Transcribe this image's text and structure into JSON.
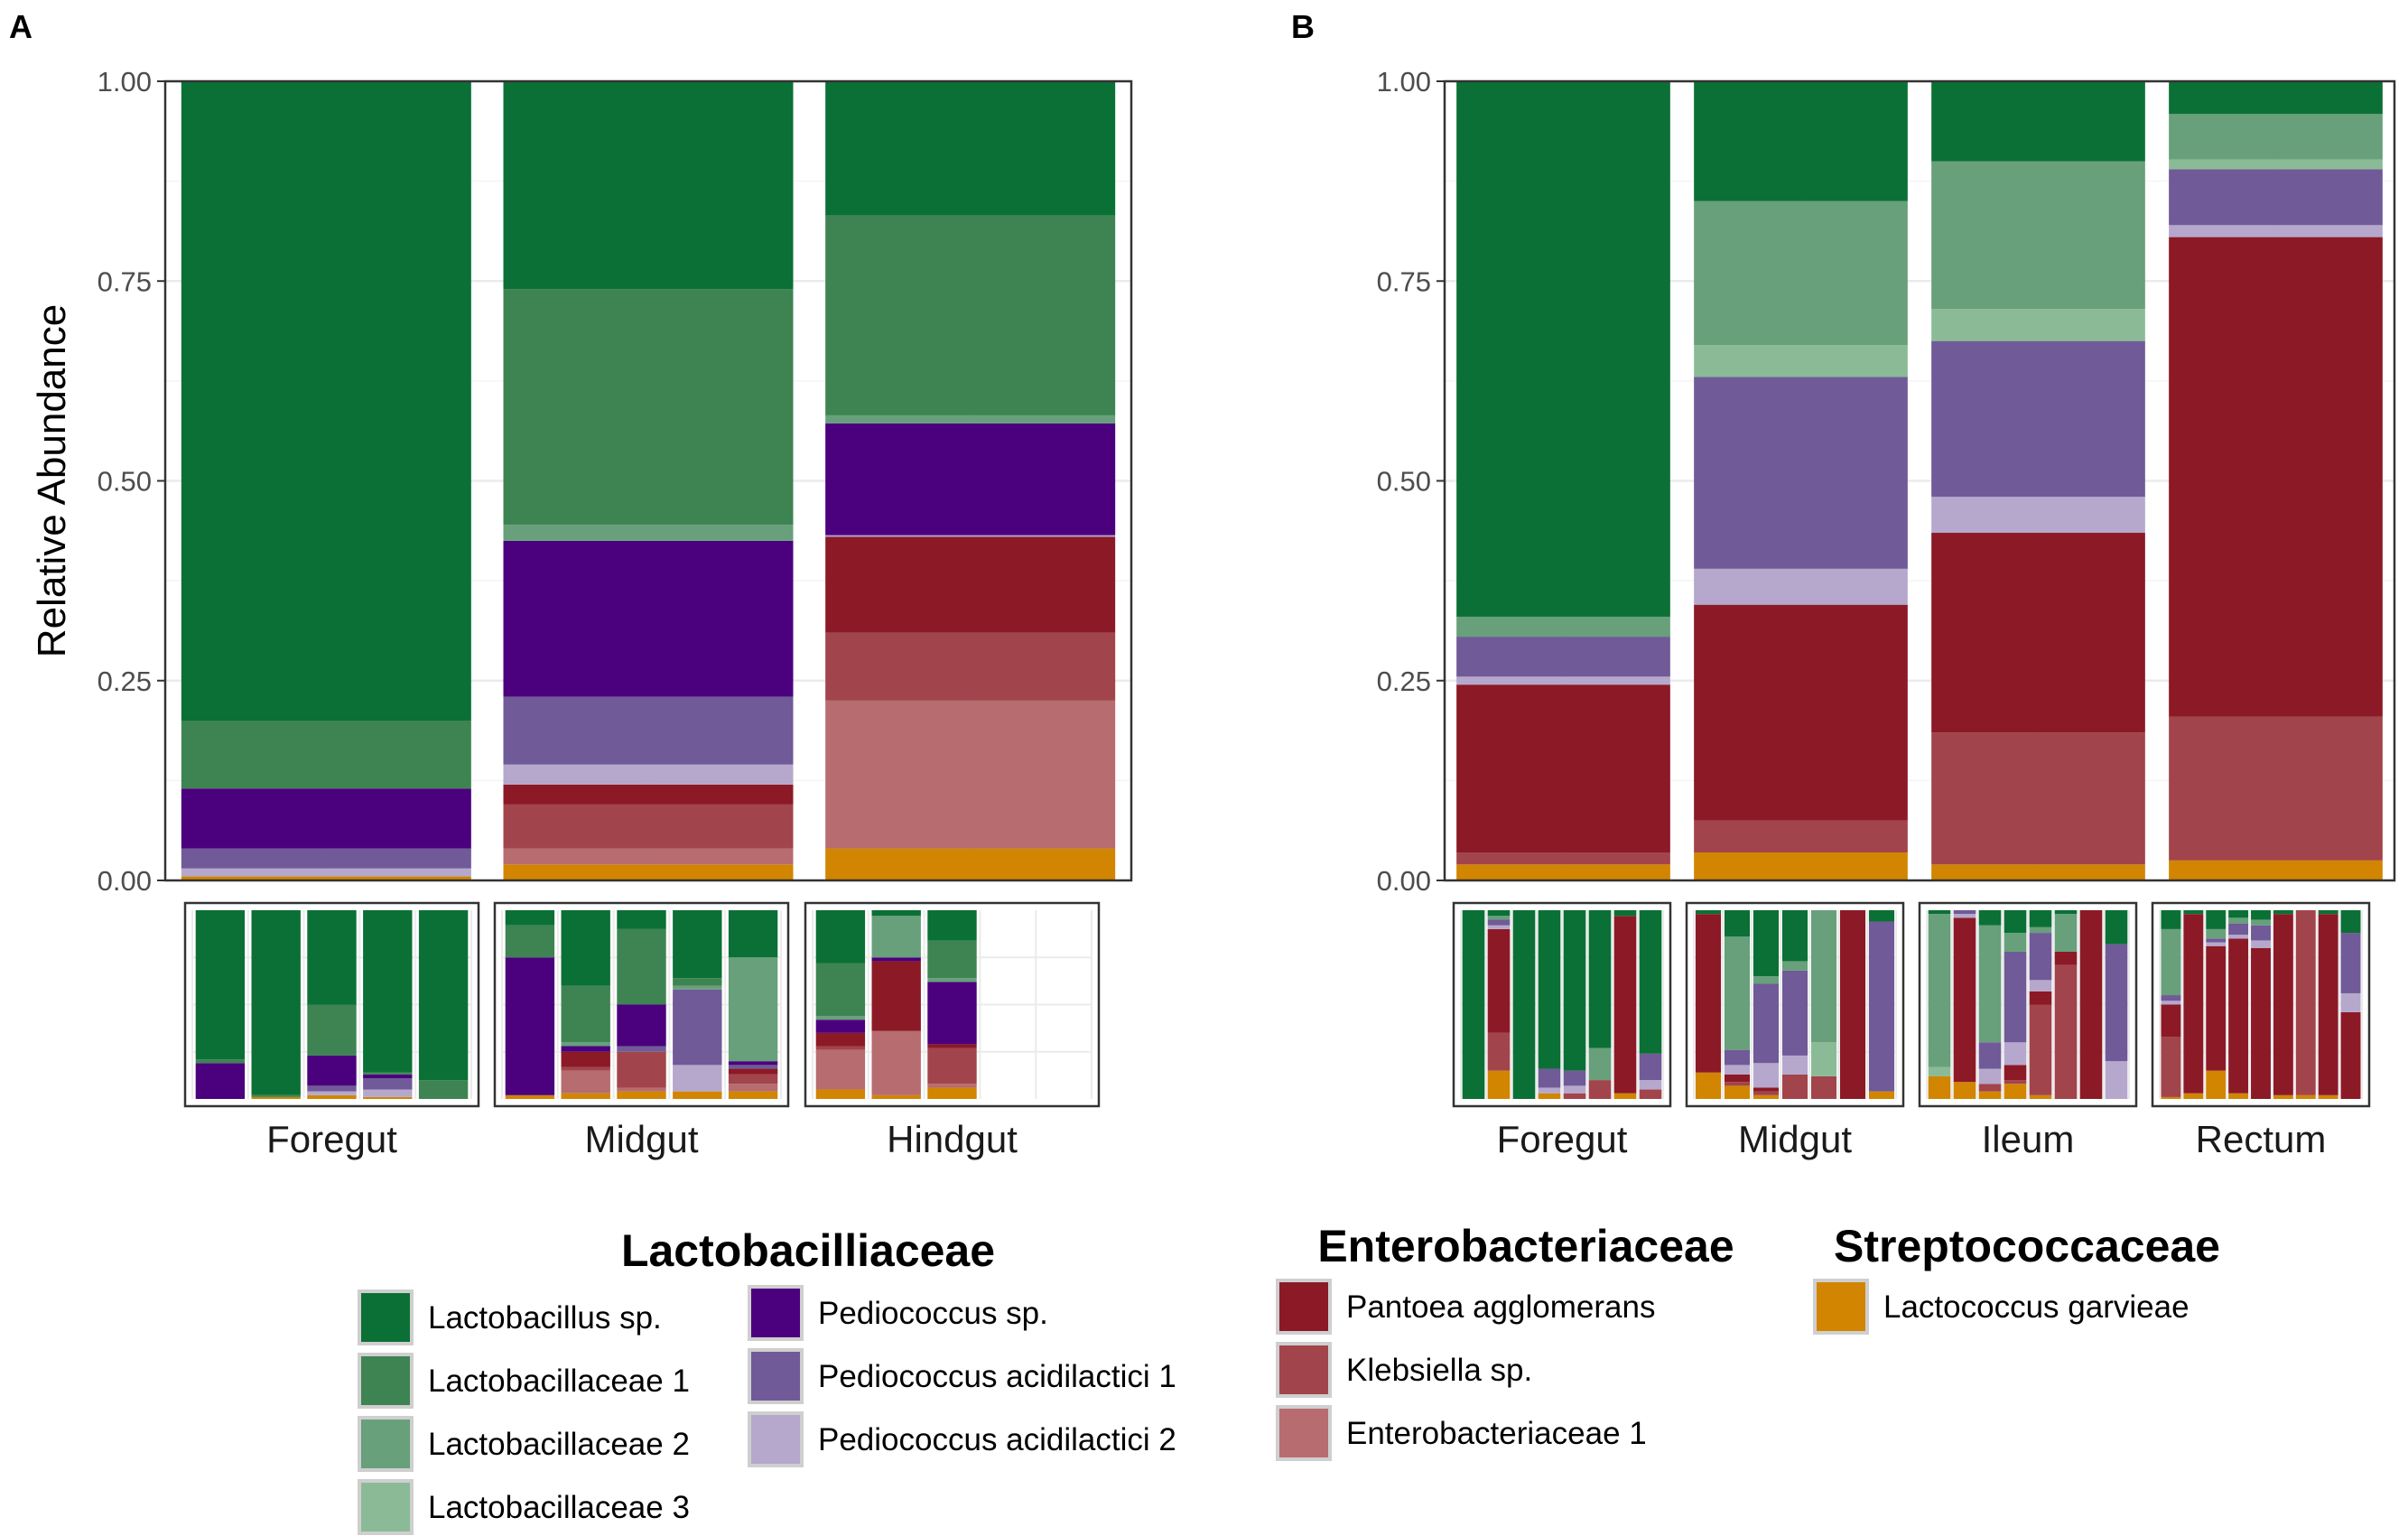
{
  "figure": {
    "panel_a_label": "A",
    "panel_b_label": "B"
  },
  "colors": {
    "Lactobacillus sp.": "#0b7035",
    "Lactobacillaceae 1": "#3d8452",
    "Lactobacillaceae 2": "#67a07a",
    "Lactobacillaceae 3": "#8abb96",
    "Pediococcus sp.": "#4b007d",
    "Pediococcus acidilactici 1": "#705a98",
    "Pediococcus acidilactici 2": "#b5a8cc",
    "Pantoea agglomerans": "#8b1a26",
    "Klebsiella sp.": "#a2444b",
    "Enterobacteriaceae 1": "#b76c6f",
    "Lactococcus garvieae": "#d18500"
  },
  "chart_data": [
    {
      "id": "A",
      "type": "bar",
      "stacked": true,
      "title": "",
      "xlabel": "",
      "ylabel": "Relative Abundance",
      "ylim": [
        0,
        1
      ],
      "yticks": [
        "0.00",
        "0.25",
        "0.50",
        "0.75",
        "1.00"
      ],
      "ytick_values": [
        0,
        0.25,
        0.5,
        0.75,
        1
      ],
      "grid": true,
      "categories": [
        "Foregut",
        "Midgut",
        "Hindgut"
      ],
      "series": [
        {
          "name": "Lactococcus garvieae",
          "values": [
            0.005,
            0.02,
            0.04
          ]
        },
        {
          "name": "Enterobacteriaceae 1",
          "values": [
            0.0,
            0.02,
            0.185
          ]
        },
        {
          "name": "Klebsiella sp.",
          "values": [
            0.0,
            0.055,
            0.085
          ]
        },
        {
          "name": "Pantoea agglomerans",
          "values": [
            0.0,
            0.025,
            0.12
          ]
        },
        {
          "name": "Pediococcus acidilactici 2",
          "values": [
            0.01,
            0.025,
            0.002
          ]
        },
        {
          "name": "Pediococcus acidilactici 1",
          "values": [
            0.025,
            0.085,
            0.0
          ]
        },
        {
          "name": "Pediococcus sp.",
          "values": [
            0.075,
            0.195,
            0.14
          ]
        },
        {
          "name": "Lactobacillaceae 3",
          "values": [
            0.0,
            0.0,
            0.0
          ]
        },
        {
          "name": "Lactobacillaceae 2",
          "values": [
            0.0,
            0.02,
            0.01
          ]
        },
        {
          "name": "Lactobacillaceae 1",
          "values": [
            0.085,
            0.295,
            0.25
          ]
        },
        {
          "name": "Lactobacillus sp.",
          "values": [
            0.8,
            0.26,
            0.168
          ]
        }
      ]
    },
    {
      "id": "B",
      "type": "bar",
      "stacked": true,
      "title": "",
      "xlabel": "",
      "ylabel": "",
      "ylim": [
        0,
        1
      ],
      "yticks": [
        "0.00",
        "0.25",
        "0.50",
        "0.75",
        "1.00"
      ],
      "ytick_values": [
        0,
        0.25,
        0.5,
        0.75,
        1
      ],
      "grid": true,
      "categories": [
        "Foregut",
        "Midgut",
        "Ileum",
        "Rectum"
      ],
      "series": [
        {
          "name": "Lactococcus garvieae",
          "values": [
            0.02,
            0.035,
            0.02,
            0.025
          ]
        },
        {
          "name": "Enterobacteriaceae 1",
          "values": [
            0.0,
            0.0,
            0.0,
            0.0
          ]
        },
        {
          "name": "Klebsiella sp.",
          "values": [
            0.015,
            0.04,
            0.165,
            0.18
          ]
        },
        {
          "name": "Pantoea agglomerans",
          "values": [
            0.21,
            0.27,
            0.25,
            0.6
          ]
        },
        {
          "name": "Pediococcus acidilactici 2",
          "values": [
            0.01,
            0.045,
            0.045,
            0.015
          ]
        },
        {
          "name": "Pediococcus acidilactici 1",
          "values": [
            0.05,
            0.24,
            0.195,
            0.07
          ]
        },
        {
          "name": "Pediococcus sp.",
          "values": [
            0.0,
            0.0,
            0.0,
            0.0
          ]
        },
        {
          "name": "Lactobacillaceae 3",
          "values": [
            0.0,
            0.04,
            0.04,
            0.012
          ]
        },
        {
          "name": "Lactobacillaceae 2",
          "values": [
            0.025,
            0.18,
            0.185,
            0.057
          ]
        },
        {
          "name": "Lactobacillaceae 1",
          "values": [
            0.0,
            0.0,
            0.0,
            0.0
          ]
        },
        {
          "name": "Lactobacillus sp.",
          "values": [
            0.67,
            0.15,
            0.1,
            0.041
          ]
        }
      ]
    }
  ],
  "facets": {
    "A": {
      "groups": [
        {
          "label": "Foregut",
          "samples": [
            {
              "Lactobacillus sp.": 0.79,
              "Lactobacillaceae 1": 0.02,
              "Pediococcus sp.": 0.19
            },
            {
              "Lactobacillus sp.": 0.98,
              "Lactobacillaceae 1": 0.01,
              "Lactococcus garvieae": 0.01
            },
            {
              "Lactobacillus sp.": 0.5,
              "Lactobacillaceae 1": 0.27,
              "Pediococcus sp.": 0.16,
              "Pediococcus acidilactici 1": 0.03,
              "Pediococcus acidilactici 2": 0.02,
              "Lactococcus garvieae": 0.02
            },
            {
              "Lactobacillus sp.": 0.86,
              "Lactobacillaceae 1": 0.01,
              "Pediococcus sp.": 0.02,
              "Pediococcus acidilactici 1": 0.06,
              "Pediococcus acidilactici 2": 0.04,
              "Lactococcus garvieae": 0.01
            },
            {
              "Lactobacillus sp.": 0.9,
              "Lactobacillaceae 1": 0.1
            }
          ]
        },
        {
          "label": "Midgut",
          "samples": [
            {
              "Lactobacillus sp.": 0.08,
              "Lactobacillaceae 1": 0.17,
              "Pediococcus sp.": 0.73,
              "Lactococcus garvieae": 0.02
            },
            {
              "Lactobacillus sp.": 0.4,
              "Lactobacillaceae 1": 0.3,
              "Lactobacillaceae 2": 0.02,
              "Pediococcus sp.": 0.03,
              "Pantoea agglomerans": 0.08,
              "Klebsiella sp.": 0.02,
              "Enterobacteriaceae 1": 0.12,
              "Lactococcus garvieae": 0.03
            },
            {
              "Lactobacillus sp.": 0.1,
              "Lactobacillaceae 1": 0.4,
              "Pediococcus sp.": 0.22,
              "Pediococcus acidilactici 1": 0.03,
              "Klebsiella sp.": 0.19,
              "Enterobacteriaceae 1": 0.02,
              "Lactococcus garvieae": 0.04
            },
            {
              "Lactobacillus sp.": 0.36,
              "Lactobacillaceae 1": 0.04,
              "Lactobacillaceae 2": 0.02,
              "Pediococcus acidilactici 1": 0.4,
              "Pediococcus acidilactici 2": 0.14,
              "Lactococcus garvieae": 0.04
            },
            {
              "Lactobacillus sp.": 0.25,
              "Lactobacillaceae 2": 0.55,
              "Pediococcus sp.": 0.02,
              "Pediococcus acidilactici 1": 0.02,
              "Pantoea agglomerans": 0.03,
              "Klebsiella sp.": 0.05,
              "Enterobacteriaceae 1": 0.04,
              "Lactococcus garvieae": 0.04
            }
          ]
        },
        {
          "label": "Hindgut",
          "samples": [
            {
              "Lactobacillus sp.": 0.28,
              "Lactobacillaceae 1": 0.28,
              "Lactobacillaceae 2": 0.02,
              "Pediococcus sp.": 0.07,
              "Pantoea agglomerans": 0.07,
              "Klebsiella sp.": 0.02,
              "Enterobacteriaceae 1": 0.21,
              "Lactococcus garvieae": 0.05
            },
            {
              "Lactobacillus sp.": 0.03,
              "Lactobacillaceae 2": 0.22,
              "Pediococcus sp.": 0.02,
              "Pantoea agglomerans": 0.37,
              "Enterobacteriaceae 1": 0.34,
              "Lactococcus garvieae": 0.02
            },
            {
              "Lactobacillus sp.": 0.16,
              "Lactobacillaceae 1": 0.2,
              "Lactobacillaceae 2": 0.02,
              "Pediococcus sp.": 0.33,
              "Pantoea agglomerans": 0.02,
              "Klebsiella sp.": 0.19,
              "Enterobacteriaceae 1": 0.02,
              "Lactococcus garvieae": 0.06
            }
          ]
        }
      ]
    },
    "B": {
      "groups": [
        {
          "label": "Foregut",
          "samples": [
            {
              "Lactobacillus sp.": 1.0
            },
            {
              "Lactobacillus sp.": 0.03,
              "Lactobacillaceae 2": 0.02,
              "Pediococcus acidilactici 1": 0.03,
              "Pediococcus acidilactici 2": 0.02,
              "Pantoea agglomerans": 0.55,
              "Klebsiella sp.": 0.2,
              "Lactococcus garvieae": 0.15
            },
            {
              "Lactobacillus sp.": 1.0
            },
            {
              "Lactobacillus sp.": 0.84,
              "Pediococcus acidilactici 1": 0.1,
              "Pediococcus acidilactici 2": 0.03,
              "Lactococcus garvieae": 0.03
            },
            {
              "Lactobacillus sp.": 0.85,
              "Pediococcus acidilactici 1": 0.08,
              "Pediococcus acidilactici 2": 0.04,
              "Klebsiella sp.": 0.03
            },
            {
              "Lactobacillus sp.": 0.73,
              "Lactobacillaceae 2": 0.17,
              "Klebsiella sp.": 0.1
            },
            {
              "Lactobacillus sp.": 0.03,
              "Pantoea agglomerans": 0.94,
              "Lactococcus garvieae": 0.03
            },
            {
              "Lactobacillus sp.": 0.76,
              "Pediococcus acidilactici 1": 0.14,
              "Pediococcus acidilactici 2": 0.05,
              "Klebsiella sp.": 0.05
            }
          ]
        },
        {
          "label": "Midgut",
          "samples": [
            {
              "Lactobacillus sp.": 0.02,
              "Pantoea agglomerans": 0.84,
              "Lactococcus garvieae": 0.14
            },
            {
              "Lactobacillus sp.": 0.14,
              "Lactobacillaceae 2": 0.6,
              "Pediococcus acidilactici 1": 0.08,
              "Pediococcus acidilactici 2": 0.05,
              "Pantoea agglomerans": 0.04,
              "Klebsiella sp.": 0.02,
              "Lactococcus garvieae": 0.07
            },
            {
              "Lactobacillus sp.": 0.35,
              "Lactobacillaceae 2": 0.04,
              "Pediococcus acidilactici 1": 0.42,
              "Pediococcus acidilactici 2": 0.13,
              "Pantoea agglomerans": 0.02,
              "Klebsiella sp.": 0.02,
              "Lactococcus garvieae": 0.02
            },
            {
              "Lactobacillus sp.": 0.27,
              "Lactobacillaceae 2": 0.05,
              "Pediococcus acidilactici 1": 0.45,
              "Pediococcus acidilactici 2": 0.1,
              "Klebsiella sp.": 0.13
            },
            {
              "Lactobacillaceae 2": 0.7,
              "Lactobacillaceae 3": 0.18,
              "Klebsiella sp.": 0.12
            },
            {
              "Pantoea agglomerans": 1.0
            },
            {
              "Lactobacillus sp.": 0.06,
              "Pediococcus acidilactici 1": 0.9,
              "Lactococcus garvieae": 0.04
            }
          ]
        },
        {
          "label": "Ileum",
          "samples": [
            {
              "Lactobacillus sp.": 0.02,
              "Lactobacillaceae 2": 0.81,
              "Lactobacillaceae 3": 0.05,
              "Lactococcus garvieae": 0.12
            },
            {
              "Pediococcus acidilactici 1": 0.02,
              "Pediococcus acidilactici 2": 0.02,
              "Pantoea agglomerans": 0.87,
              "Lactococcus garvieae": 0.09
            },
            {
              "Lactobacillus sp.": 0.08,
              "Lactobacillaceae 2": 0.62,
              "Pediococcus acidilactici 1": 0.14,
              "Pediococcus acidilactici 2": 0.08,
              "Klebsiella sp.": 0.04,
              "Lactococcus garvieae": 0.04
            },
            {
              "Lactobacillus sp.": 0.12,
              "Lactobacillaceae 2": 0.1,
              "Pediococcus acidilactici 1": 0.48,
              "Pediococcus acidilactici 2": 0.12,
              "Pantoea agglomerans": 0.08,
              "Klebsiella sp.": 0.02,
              "Lactococcus garvieae": 0.08
            },
            {
              "Lactobacillus sp.": 0.09,
              "Lactobacillaceae 2": 0.03,
              "Pediococcus acidilactici 1": 0.25,
              "Pediococcus acidilactici 2": 0.06,
              "Pantoea agglomerans": 0.07,
              "Klebsiella sp.": 0.48,
              "Lactococcus garvieae": 0.02
            },
            {
              "Lactobacillus sp.": 0.02,
              "Lactobacillaceae 2": 0.2,
              "Pantoea agglomerans": 0.07,
              "Klebsiella sp.": 0.71
            },
            {
              "Pantoea agglomerans": 1.0
            },
            {
              "Lactobacillus sp.": 0.18,
              "Pediococcus acidilactici 1": 0.62,
              "Pediococcus acidilactici 2": 0.2
            }
          ]
        },
        {
          "label": "Rectum",
          "samples": [
            {
              "Lactobacillus sp.": 0.1,
              "Lactobacillaceae 2": 0.35,
              "Pediococcus acidilactici 1": 0.03,
              "Pediococcus acidilactici 2": 0.02,
              "Pantoea agglomerans": 0.17,
              "Klebsiella sp.": 0.32,
              "Lactococcus garvieae": 0.01
            },
            {
              "Lactobacillus sp.": 0.02,
              "Pantoea agglomerans": 0.95,
              "Lactococcus garvieae": 0.03
            },
            {
              "Lactobacillus sp.": 0.1,
              "Lactobacillaceae 2": 0.05,
              "Pediococcus acidilactici 1": 0.02,
              "Pediococcus acidilactici 2": 0.02,
              "Pantoea agglomerans": 0.66,
              "Lactococcus garvieae": 0.15
            },
            {
              "Lactobacillus sp.": 0.04,
              "Lactobacillaceae 2": 0.03,
              "Pediococcus acidilactici 1": 0.06,
              "Pediococcus acidilactici 2": 0.02,
              "Pantoea agglomerans": 0.82,
              "Lactococcus garvieae": 0.03
            },
            {
              "Lactobacillus sp.": 0.05,
              "Lactobacillaceae 2": 0.03,
              "Pediococcus acidilactici 1": 0.08,
              "Pediococcus acidilactici 2": 0.04,
              "Pantoea agglomerans": 0.8
            },
            {
              "Lactobacillus sp.": 0.02,
              "Pantoea agglomerans": 0.96,
              "Lactococcus garvieae": 0.02
            },
            {
              "Klebsiella sp.": 0.98,
              "Lactococcus garvieae": 0.02
            },
            {
              "Lactobacillus sp.": 0.02,
              "Pantoea agglomerans": 0.96,
              "Lactococcus garvieae": 0.02
            },
            {
              "Lactobacillus sp.": 0.12,
              "Pediococcus acidilactici 1": 0.32,
              "Pediococcus acidilactici 2": 0.1,
              "Pantoea agglomerans": 0.46
            }
          ]
        }
      ]
    }
  },
  "legend": {
    "groups": [
      {
        "title": "Lactobacilliaceae",
        "items": [
          "Lactobacillus sp.",
          "Lactobacillaceae 1",
          "Lactobacillaceae 2",
          "Lactobacillaceae 3",
          "Pediococcus sp.",
          "Pediococcus acidilactici 1",
          "Pediococcus acidilactici 2"
        ]
      },
      {
        "title": "Enterobacteriaceae",
        "items": [
          "Pantoea agglomerans",
          "Klebsiella sp.",
          "Enterobacteriaceae 1"
        ]
      },
      {
        "title": "Streptococcaceae",
        "items": [
          "Lactococcus garvieae"
        ]
      }
    ]
  }
}
